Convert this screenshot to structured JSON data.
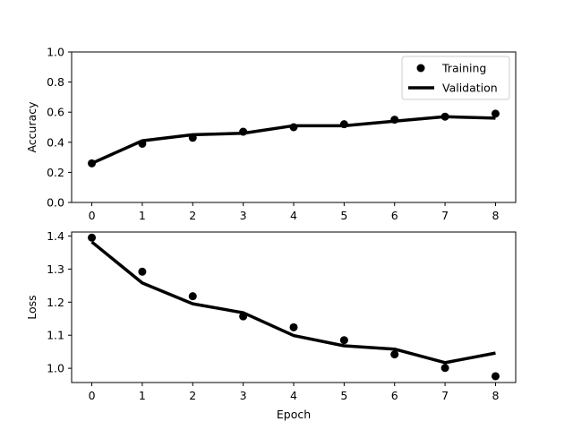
{
  "chart_data": [
    {
      "type": "line",
      "xlabel": "",
      "ylabel": "Accuracy",
      "xlim": [
        -0.4,
        8.4
      ],
      "ylim": [
        0.0,
        1.0
      ],
      "xticks": [
        0,
        1,
        2,
        3,
        4,
        5,
        6,
        7,
        8
      ],
      "xtick_labels": [
        "0",
        "1",
        "2",
        "3",
        "4",
        "5",
        "6",
        "7",
        "8"
      ],
      "yticks": [
        0.0,
        0.2,
        0.4,
        0.6,
        0.8,
        1.0
      ],
      "ytick_labels": [
        "0.0",
        "0.2",
        "0.4",
        "0.6",
        "0.8",
        "1.0"
      ],
      "grid": false,
      "legend": "top-right",
      "x": [
        0,
        1,
        2,
        3,
        4,
        5,
        6,
        7,
        8
      ],
      "series": [
        {
          "name": "Training",
          "style": "markers",
          "color": "#000000",
          "values": [
            0.26,
            0.39,
            0.43,
            0.47,
            0.5,
            0.52,
            0.55,
            0.57,
            0.59
          ]
        },
        {
          "name": "Validation",
          "style": "line",
          "color": "#000000",
          "values": [
            0.26,
            0.41,
            0.45,
            0.46,
            0.51,
            0.51,
            0.54,
            0.57,
            0.56
          ]
        }
      ]
    },
    {
      "type": "line",
      "xlabel": "Epoch",
      "ylabel": "Loss",
      "xlim": [
        -0.4,
        8.4
      ],
      "ylim": [
        0.957,
        1.412
      ],
      "xticks": [
        0,
        1,
        2,
        3,
        4,
        5,
        6,
        7,
        8
      ],
      "xtick_labels": [
        "0",
        "1",
        "2",
        "3",
        "4",
        "5",
        "6",
        "7",
        "8"
      ],
      "yticks": [
        1.0,
        1.1,
        1.2,
        1.3,
        1.4
      ],
      "ytick_labels": [
        "1.0",
        "1.1",
        "1.2",
        "1.3",
        "1.4"
      ],
      "grid": false,
      "legend": "none",
      "x": [
        0,
        1,
        2,
        3,
        4,
        5,
        6,
        7,
        8
      ],
      "series": [
        {
          "name": "Training",
          "style": "markers",
          "color": "#000000",
          "values": [
            1.395,
            1.292,
            1.218,
            1.157,
            1.124,
            1.085,
            1.042,
            1.001,
            0.976
          ]
        },
        {
          "name": "Validation",
          "style": "line",
          "color": "#000000",
          "values": [
            1.382,
            1.258,
            1.195,
            1.168,
            1.099,
            1.068,
            1.058,
            1.017,
            1.046
          ]
        }
      ]
    }
  ]
}
